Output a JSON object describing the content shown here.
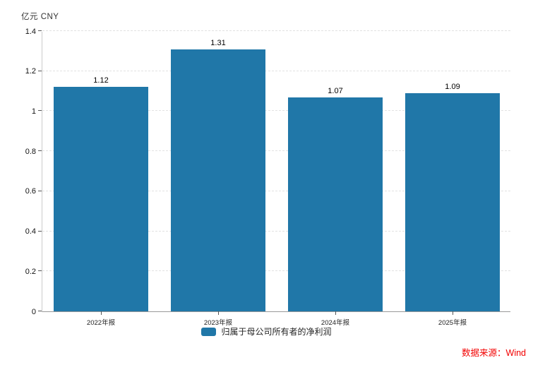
{
  "header": {
    "unit_label": "亿元 CNY"
  },
  "legend": {
    "label": "归属于母公司所有者的净利润",
    "swatch_color": "#2077A8"
  },
  "source": {
    "label": "数据来源：Wind",
    "color": "#F20000"
  },
  "chart_data": {
    "type": "bar",
    "categories": [
      "2022年报",
      "2023年报",
      "2024年报",
      "2025年报"
    ],
    "values": [
      1.12,
      1.31,
      1.07,
      1.09
    ],
    "value_labels": [
      "1.12",
      "1.31",
      "1.07",
      "1.09"
    ],
    "series": [
      {
        "name": "归属于母公司所有者的净利润",
        "values": [
          1.12,
          1.31,
          1.07,
          1.09
        ]
      }
    ],
    "title": "",
    "xlabel": "",
    "ylabel": "亿元 CNY",
    "ylim": [
      0,
      1.4
    ],
    "yticks": [
      0,
      0.2,
      0.4,
      0.6,
      0.8,
      1,
      1.2,
      1.4
    ],
    "ytick_labels": [
      "0",
      "0.2",
      "0.4",
      "0.6",
      "0.8",
      "1",
      "1.2",
      "1.4"
    ],
    "bar_color": "#2077A8",
    "grid": "horizontal-dashed",
    "gridline_color": "#e2e2e2",
    "legend_position": "bottom-center",
    "data_labels": "above-bars"
  }
}
